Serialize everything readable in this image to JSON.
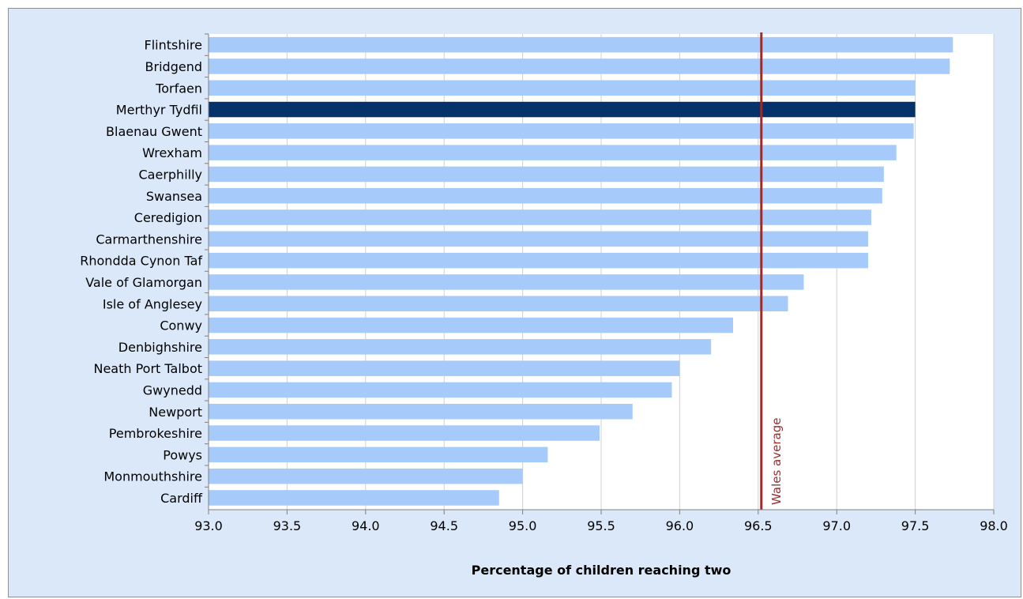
{
  "chart_data": {
    "type": "bar",
    "orientation": "horizontal",
    "title": "",
    "xlabel": "Percentage of children reaching two",
    "ylabel": "",
    "xlim": [
      93.0,
      98.0
    ],
    "x_ticks": [
      "93.0",
      "93.5",
      "94.0",
      "94.5",
      "95.0",
      "95.5",
      "96.0",
      "96.5",
      "97.0",
      "97.5",
      "98.0"
    ],
    "grid": "vertical",
    "legend": "none",
    "categories": [
      "Flintshire",
      "Bridgend",
      "Torfaen",
      "Merthyr Tydfil",
      "Blaenau Gwent",
      "Wrexham",
      "Caerphilly",
      "Swansea",
      "Ceredigion",
      "Carmarthenshire",
      "Rhondda Cynon Taf",
      "Vale of Glamorgan",
      "Isle of Anglesey",
      "Conwy",
      "Denbighshire",
      "Neath Port Talbot",
      "Gwynedd",
      "Newport",
      "Pembrokeshire",
      "Powys",
      "Monmouthshire",
      "Cardiff"
    ],
    "values": [
      97.74,
      97.72,
      97.5,
      97.5,
      97.49,
      97.38,
      97.3,
      97.29,
      97.22,
      97.2,
      97.2,
      96.79,
      96.69,
      96.34,
      96.2,
      96.0,
      95.95,
      95.7,
      95.49,
      95.16,
      95.0,
      94.85
    ],
    "highlight": "Merthyr Tydfil",
    "reference_line": {
      "label": "Wales average",
      "value": 96.52
    },
    "colors": {
      "bar": "#a6cbfb",
      "highlight": "#06326b",
      "reference": "#9b2c2c",
      "background": "#dbe8fa",
      "plot": "#ffffff",
      "grid": "#d0d0d0"
    }
  }
}
